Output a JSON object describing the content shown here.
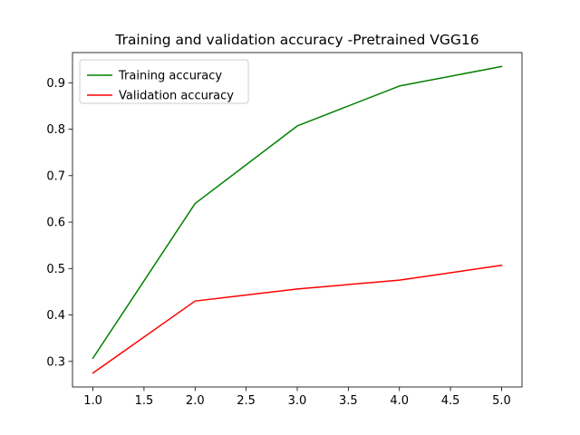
{
  "chart_data": {
    "type": "line",
    "title": "Training and validation accuracy -Pretrained VGG16",
    "xlabel": "",
    "ylabel": "",
    "x": [
      1.0,
      2.0,
      3.0,
      4.0,
      5.0
    ],
    "xlim": [
      0.8,
      5.2
    ],
    "ylim": [
      0.245,
      0.965
    ],
    "xticks": [
      1.0,
      1.5,
      2.0,
      2.5,
      3.0,
      3.5,
      4.0,
      4.5,
      5.0
    ],
    "xtick_labels": [
      "1.0",
      "1.5",
      "2.0",
      "2.5",
      "3.0",
      "3.5",
      "4.0",
      "4.5",
      "5.0"
    ],
    "yticks": [
      0.3,
      0.4,
      0.5,
      0.6,
      0.7,
      0.8,
      0.9
    ],
    "ytick_labels": [
      "0.3",
      "0.4",
      "0.5",
      "0.6",
      "0.7",
      "0.8",
      "0.9"
    ],
    "grid": false,
    "legend_position": "top-left",
    "series": [
      {
        "name": "Training accuracy",
        "color": "#008000",
        "values": [
          0.307,
          0.64,
          0.807,
          0.893,
          0.935
        ]
      },
      {
        "name": "Validation accuracy",
        "color": "#ff0000",
        "values": [
          0.275,
          0.43,
          0.456,
          0.475,
          0.507
        ]
      }
    ]
  }
}
